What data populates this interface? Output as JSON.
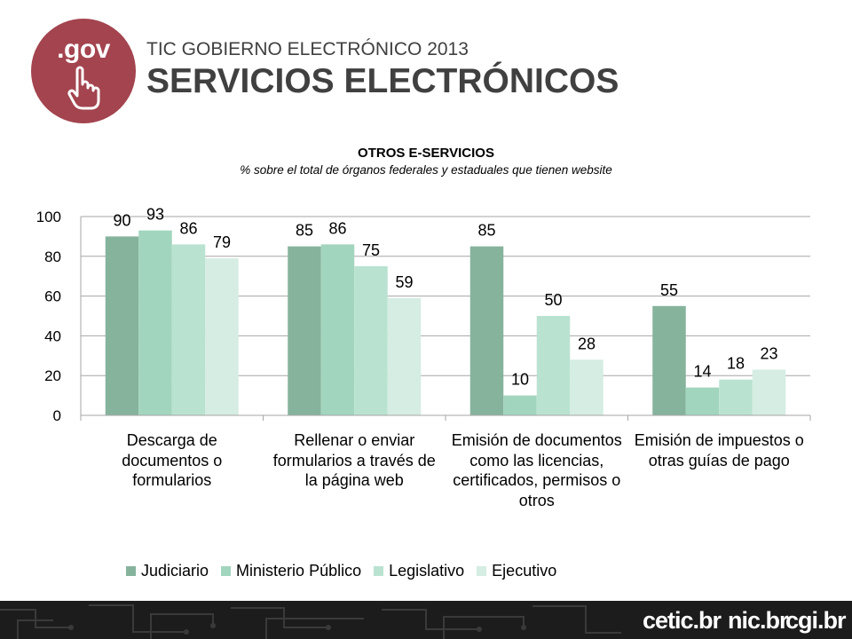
{
  "header": {
    "logo_text": ".gov",
    "subtitle": "TIC GOBIERNO ELECTRÓNICO 2013",
    "title": "SERVICIOS ELECTRÓNICOS"
  },
  "chart_data": {
    "type": "bar",
    "title": "OTROS E-SERVICIOS",
    "subtitle": "% sobre el total de órganos federales y estaduales que tienen website",
    "categories": [
      "Descarga de documentos o formularios",
      "Rellenar o enviar formularios a través de la página web",
      "Emisión de documentos como las licencias, certificados, permisos o otros",
      "Emisión de impuestos o otras guías de pago"
    ],
    "series": [
      {
        "name": "Judiciario",
        "values": [
          90,
          85,
          85,
          55
        ],
        "color": "#86b39c"
      },
      {
        "name": "Ministerio Público",
        "values": [
          93,
          86,
          10,
          14
        ],
        "color": "#a2d5be"
      },
      {
        "name": "Legislativo",
        "values": [
          86,
          75,
          50,
          18
        ],
        "color": "#b9e3d0"
      },
      {
        "name": "Ejecutivo",
        "values": [
          79,
          59,
          28,
          23
        ],
        "color": "#d5ede2"
      }
    ],
    "ylim": [
      0,
      100
    ],
    "yticks": [
      0,
      20,
      40,
      60,
      80,
      100
    ],
    "grid": true,
    "legend_position": "bottom"
  },
  "footer": {
    "brands": [
      "cetic.br",
      "nic.br",
      "cgi.br"
    ]
  }
}
